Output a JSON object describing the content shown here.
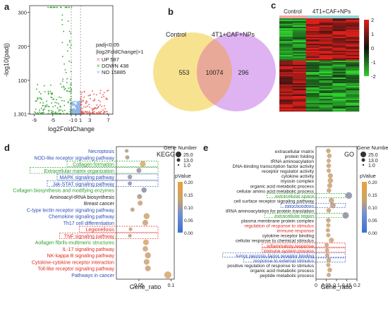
{
  "panel_letters": {
    "a": "a",
    "b": "b",
    "c": "c",
    "d": "d",
    "e": "e"
  },
  "colors": {
    "up": "#e8615a",
    "down": "#3aaa35",
    "no": "#8fb4e6",
    "venn_left": "#f7e38f",
    "venn_right": "#d9a6f0",
    "venn_overlap": "#e9a999",
    "heat_high": "#e0201b",
    "heat_mid": "#111111",
    "heat_low": "#2fd12f",
    "label_blue": "#2b4fb5",
    "label_green": "#2e9e2e",
    "label_red": "#e0281f",
    "label_black": "#222222"
  },
  "chart_data": [
    {
      "id": "a",
      "type": "scatter",
      "xlabel": "log2FoldChange",
      "ylabel": "-log10(padj)",
      "x_ticks": [
        "-9",
        "-5",
        "-1",
        "0",
        "1",
        "3",
        "7"
      ],
      "y_ticks": [
        "1.301",
        "100",
        "200",
        "300"
      ],
      "x_range": [
        -10,
        8
      ],
      "y_range": [
        0,
        320
      ],
      "thresholds": {
        "padj_line": 1.301,
        "fc_lines": [
          -1,
          1
        ]
      },
      "legend_title_1": "padj<0.05",
      "legend_title_2": "|log2FoldChange|>1",
      "legend_items": [
        {
          "label": "UP 587",
          "color": "#e8615a"
        },
        {
          "label": "DOWN 438",
          "color": "#3aaa35"
        },
        {
          "label": "NO 15885",
          "color": "#8fb4e6"
        }
      ],
      "groups": {
        "up": 587,
        "down": 438,
        "no": 15885
      }
    },
    {
      "id": "b",
      "type": "venn",
      "sets": [
        {
          "name": "Control",
          "only": 553
        },
        {
          "name": "4T1+CAF+NPs",
          "only": 296
        }
      ],
      "overlap": 10074
    },
    {
      "id": "c",
      "type": "heatmap",
      "columns": [
        "Control",
        "4T1+CAF+NPs"
      ],
      "colorbar_ticks": [
        "2",
        "1",
        "0",
        "-1",
        "-2"
      ],
      "color_range": [
        -2,
        2
      ]
    },
    {
      "id": "d",
      "type": "scatter",
      "title": "KEGG",
      "xlabel": "Gene_ratio",
      "x_ticks": [
        "0.05",
        "0.1"
      ],
      "x_range": [
        0.015,
        0.105
      ],
      "size_legend_title": "Gene Number",
      "size_legend": [
        "25.0",
        "13.0",
        "1.0"
      ],
      "color_legend_title": "pValue",
      "color_ticks": [
        "0.20",
        "0.15",
        "0.10",
        "0.05",
        "0.00"
      ],
      "terms": [
        {
          "label": "Necroptosis",
          "category": "blue",
          "ratio": 0.031,
          "size": 2,
          "pvalue": 0.12,
          "boxed": false
        },
        {
          "label": "NOD-like receptor signaling pathway",
          "category": "blue",
          "ratio": 0.032,
          "size": 3,
          "pvalue": 0.11,
          "boxed": false
        },
        {
          "label": "Collagen formation",
          "category": "green",
          "ratio": 0.056,
          "size": 7,
          "pvalue": 0.18,
          "boxed": true
        },
        {
          "label": "Extracellular matrix organization",
          "category": "green",
          "ratio": 0.05,
          "size": 5,
          "pvalue": 0.09,
          "boxed": true
        },
        {
          "label": "MAPK signaling pathway",
          "category": "blue",
          "ratio": 0.036,
          "size": 4,
          "pvalue": 0.08,
          "boxed": true
        },
        {
          "label": "Jak-STAT signaling pathway",
          "category": "blue",
          "ratio": 0.036,
          "size": 3,
          "pvalue": 0.07,
          "boxed": true
        },
        {
          "label": "Collagen biosynthesis and modifying enzymes",
          "category": "green",
          "ratio": 0.058,
          "size": 6,
          "pvalue": 0.06,
          "boxed": false
        },
        {
          "label": "Aminoacyl-tRNA biosynthesis",
          "category": "black",
          "ratio": 0.051,
          "size": 5,
          "pvalue": 0.1,
          "boxed": false
        },
        {
          "label": "Breast cancer",
          "category": "black",
          "ratio": 0.052,
          "size": 5,
          "pvalue": 0.15,
          "boxed": false
        },
        {
          "label": "C-type lectin receptor signaling pathway",
          "category": "blue",
          "ratio": 0.04,
          "size": 3,
          "pvalue": 0.13,
          "boxed": false
        },
        {
          "label": "Chemokine signaling pathway",
          "category": "blue",
          "ratio": 0.062,
          "size": 8,
          "pvalue": 0.16,
          "boxed": false
        },
        {
          "label": "Th17 cell differentiation",
          "category": "blue",
          "ratio": 0.06,
          "size": 7,
          "pvalue": 0.15,
          "boxed": false
        },
        {
          "label": "Legionellosis",
          "category": "red",
          "ratio": 0.037,
          "size": 2,
          "pvalue": 0.14,
          "boxed": true
        },
        {
          "label": "TNF signaling pathway",
          "category": "red",
          "ratio": 0.036,
          "size": 2,
          "pvalue": 0.12,
          "boxed": true
        },
        {
          "label": "Aollagen fibrils-multimeric structures",
          "category": "green",
          "ratio": 0.061,
          "size": 7,
          "pvalue": 0.17,
          "boxed": false
        },
        {
          "label": "IL-17 signaling pathway",
          "category": "red",
          "ratio": 0.06,
          "size": 6,
          "pvalue": 0.16,
          "boxed": false
        },
        {
          "label": "NK-kappa B signaling pathway",
          "category": "red",
          "ratio": 0.064,
          "size": 8,
          "pvalue": 0.15,
          "boxed": false
        },
        {
          "label": "Cytokine-cytokine receptor interaction",
          "category": "red",
          "ratio": 0.062,
          "size": 7,
          "pvalue": 0.16,
          "boxed": false
        },
        {
          "label": "Toll-like receptor signaling pathway",
          "category": "red",
          "ratio": 0.064,
          "size": 7,
          "pvalue": 0.15,
          "boxed": false
        },
        {
          "label": "Pathways in cancer",
          "category": "blue",
          "ratio": 0.095,
          "size": 12,
          "pvalue": 0.17,
          "boxed": false
        }
      ]
    },
    {
      "id": "e",
      "type": "scatter",
      "title": "GO",
      "xlabel": "Gene_ratio",
      "x_ticks": [
        "0",
        "0.05",
        "0.1",
        "0.15",
        "0.2"
      ],
      "x_range": [
        0,
        0.2
      ],
      "size_legend_title": "Gene Number",
      "size_legend": [
        "25.0",
        "13.0",
        "1.0"
      ],
      "color_legend_title": "pValue",
      "color_ticks": [
        "0.20",
        "0.15",
        "0.10",
        "0.05",
        "0.00"
      ],
      "terms": [
        {
          "label": "extracellular matrix",
          "category": "black",
          "ratio": 0.06,
          "size": 4,
          "pvalue": 0.15,
          "boxed": false
        },
        {
          "label": "protein folding",
          "category": "black",
          "ratio": 0.065,
          "size": 4,
          "pvalue": 0.15,
          "boxed": false
        },
        {
          "label": "tRNA aminoacylation",
          "category": "black",
          "ratio": 0.062,
          "size": 3,
          "pvalue": 0.15,
          "boxed": false
        },
        {
          "label": "DNA-binding transcription factor activity",
          "category": "black",
          "ratio": 0.062,
          "size": 4,
          "pvalue": 0.15,
          "boxed": false
        },
        {
          "label": "receptor regulator activity",
          "category": "black",
          "ratio": 0.062,
          "size": 3,
          "pvalue": 0.14,
          "boxed": false
        },
        {
          "label": "cytokine activity",
          "category": "black",
          "ratio": 0.07,
          "size": 5,
          "pvalue": 0.15,
          "boxed": false
        },
        {
          "label": "myosin complex",
          "category": "black",
          "ratio": 0.07,
          "size": 6,
          "pvalue": 0.16,
          "boxed": false
        },
        {
          "label": "organic acid metabolic process",
          "category": "black",
          "ratio": 0.067,
          "size": 5,
          "pvalue": 0.15,
          "boxed": false
        },
        {
          "label": "cellular amino acid metabolic process",
          "category": "black",
          "ratio": 0.063,
          "size": 4,
          "pvalue": 0.15,
          "boxed": false
        },
        {
          "label": "extracellular space",
          "category": "green",
          "ratio": 0.16,
          "size": 11,
          "pvalue": 0.06,
          "boxed": true
        },
        {
          "label": "cell surface receptor signaling pathway",
          "category": "black",
          "ratio": 0.075,
          "size": 6,
          "pvalue": 0.15,
          "boxed": false
        },
        {
          "label": "mitochondrion",
          "category": "blue",
          "ratio": 0.082,
          "size": 7,
          "pvalue": 0.13,
          "boxed": true
        },
        {
          "label": "tRNA aminoacylation for protein translation",
          "category": "black",
          "ratio": 0.062,
          "size": 4,
          "pvalue": 0.15,
          "boxed": false
        },
        {
          "label": "extracellular region",
          "category": "green",
          "ratio": 0.145,
          "size": 10,
          "pvalue": 0.07,
          "boxed": true
        },
        {
          "label": "plasma membrane protein complex",
          "category": "black",
          "ratio": 0.06,
          "size": 4,
          "pvalue": 0.14,
          "boxed": false
        },
        {
          "label": "regulation of response to stimulus",
          "category": "red",
          "ratio": 0.06,
          "size": 3,
          "pvalue": 0.16,
          "boxed": false
        },
        {
          "label": "immune response",
          "category": "red",
          "ratio": 0.058,
          "size": 3,
          "pvalue": 0.15,
          "boxed": false
        },
        {
          "label": "cytokine receptor binding",
          "category": "black",
          "ratio": 0.06,
          "size": 3,
          "pvalue": 0.15,
          "boxed": false
        },
        {
          "label": "cellular response to chemical stimulus",
          "category": "black",
          "ratio": 0.075,
          "size": 5,
          "pvalue": 0.16,
          "boxed": false
        },
        {
          "label": "inflammatory response",
          "category": "red",
          "ratio": 0.052,
          "size": 3,
          "pvalue": 0.15,
          "boxed": true
        },
        {
          "label": "immune system process",
          "category": "red",
          "ratio": 0.054,
          "size": 3,
          "pvalue": 0.16,
          "boxed": true
        },
        {
          "label": "tumor necrosis factor receptor binding",
          "category": "blue",
          "ratio": 0.055,
          "size": 3,
          "pvalue": 0.15,
          "boxed": true
        },
        {
          "label": "response to external stimulus",
          "category": "blue",
          "ratio": 0.062,
          "size": 4,
          "pvalue": 0.15,
          "boxed": true
        },
        {
          "label": "positive regulation of response to stimulus",
          "category": "black",
          "ratio": 0.06,
          "size": 3,
          "pvalue": 0.15,
          "boxed": false
        },
        {
          "label": "organic acid metabolic process",
          "category": "black",
          "ratio": 0.067,
          "size": 4,
          "pvalue": 0.15,
          "boxed": false
        },
        {
          "label": "peptide metabolic process",
          "category": "black",
          "ratio": 0.062,
          "size": 3,
          "pvalue": 0.15,
          "boxed": false
        }
      ]
    }
  ]
}
